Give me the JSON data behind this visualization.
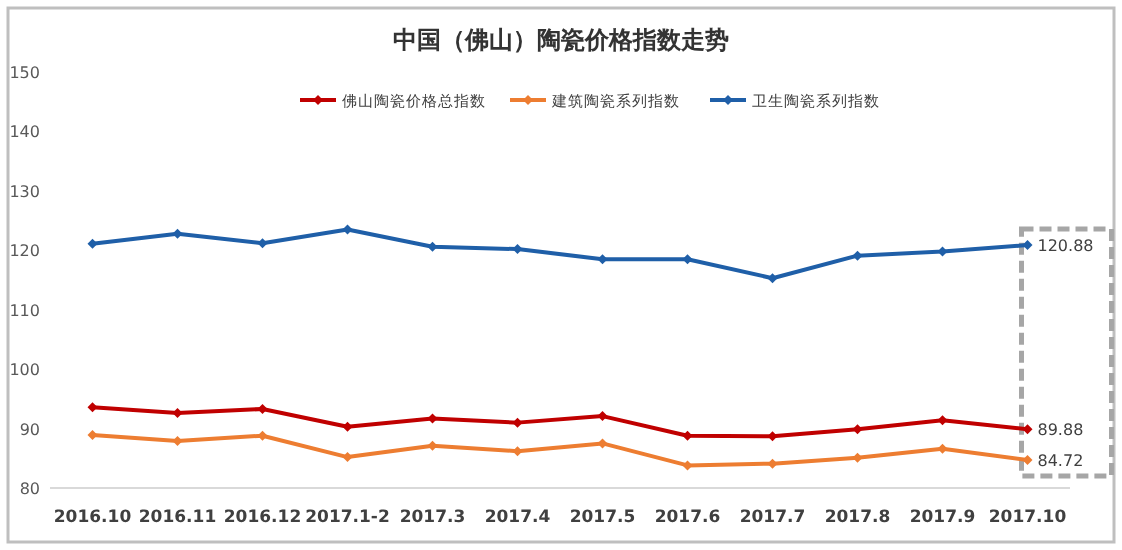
{
  "chart_data": {
    "type": "line",
    "title": "中国（佛山）陶瓷价格指数走势",
    "categories": [
      "2016.10",
      "2016.11",
      "2016.12",
      "2017.1-2",
      "2017.3",
      "2017.4",
      "2017.5",
      "2017.6",
      "2017.7",
      "2017.8",
      "2017.9",
      "2017.10"
    ],
    "series": [
      {
        "name": "佛山陶瓷价格总指数",
        "color": "#c00000",
        "values": [
          93.6,
          92.6,
          93.3,
          90.3,
          91.7,
          91.0,
          92.1,
          88.8,
          88.7,
          89.9,
          91.4,
          89.88
        ],
        "value_labels": [
          null,
          null,
          null,
          null,
          null,
          null,
          null,
          null,
          null,
          null,
          null,
          "89.88"
        ]
      },
      {
        "name": "建筑陶瓷系列指数",
        "color": "#ed7d31",
        "values": [
          88.9,
          87.9,
          88.8,
          85.2,
          87.1,
          86.2,
          87.5,
          83.8,
          84.1,
          85.1,
          86.6,
          84.72
        ],
        "value_labels": [
          null,
          null,
          null,
          null,
          null,
          null,
          null,
          null,
          null,
          null,
          null,
          "84.72"
        ]
      },
      {
        "name": "卫生陶瓷系列指数",
        "color": "#1f5fa8",
        "values": [
          121.1,
          122.8,
          121.2,
          123.5,
          120.6,
          120.2,
          118.5,
          118.5,
          115.3,
          119.1,
          119.8,
          120.88
        ],
        "value_labels": [
          null,
          null,
          null,
          null,
          null,
          null,
          null,
          null,
          null,
          null,
          null,
          "120.88"
        ]
      }
    ],
    "ylim": [
      80,
      150
    ],
    "yticks": [
      80,
      90,
      100,
      110,
      120,
      130,
      140,
      150
    ],
    "legend": "top",
    "marker": "diamond",
    "line_style": "solid",
    "grid": false
  }
}
